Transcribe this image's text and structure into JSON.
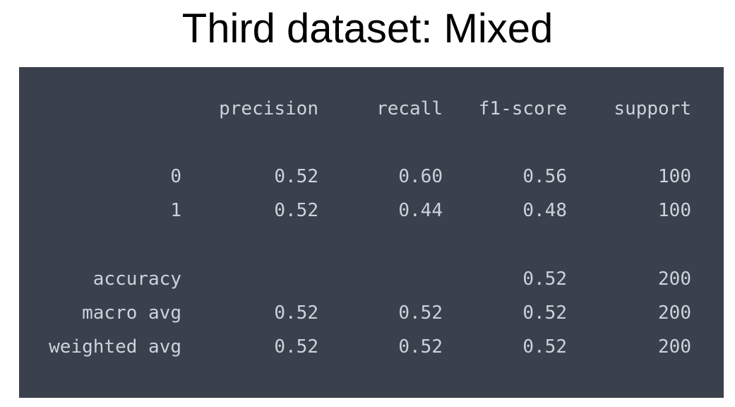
{
  "title": "Third dataset: Mixed",
  "report": {
    "headers": {
      "precision": "precision",
      "recall": "recall",
      "f1": "f1-score",
      "support": "support"
    },
    "rows": [
      {
        "label": "0",
        "precision": "0.52",
        "recall": "0.60",
        "f1": "0.56",
        "support": "100"
      },
      {
        "label": "1",
        "precision": "0.52",
        "recall": "0.44",
        "f1": "0.48",
        "support": "100"
      }
    ],
    "accuracy": {
      "label": "accuracy",
      "f1": "0.52",
      "support": "200"
    },
    "macro_avg": {
      "label": "macro avg",
      "precision": "0.52",
      "recall": "0.52",
      "f1": "0.52",
      "support": "200"
    },
    "weighted_avg": {
      "label": "weighted avg",
      "precision": "0.52",
      "recall": "0.52",
      "f1": "0.52",
      "support": "200"
    }
  },
  "colors": {
    "panel_background": "#3a404c",
    "text": "#cdd3dc"
  }
}
